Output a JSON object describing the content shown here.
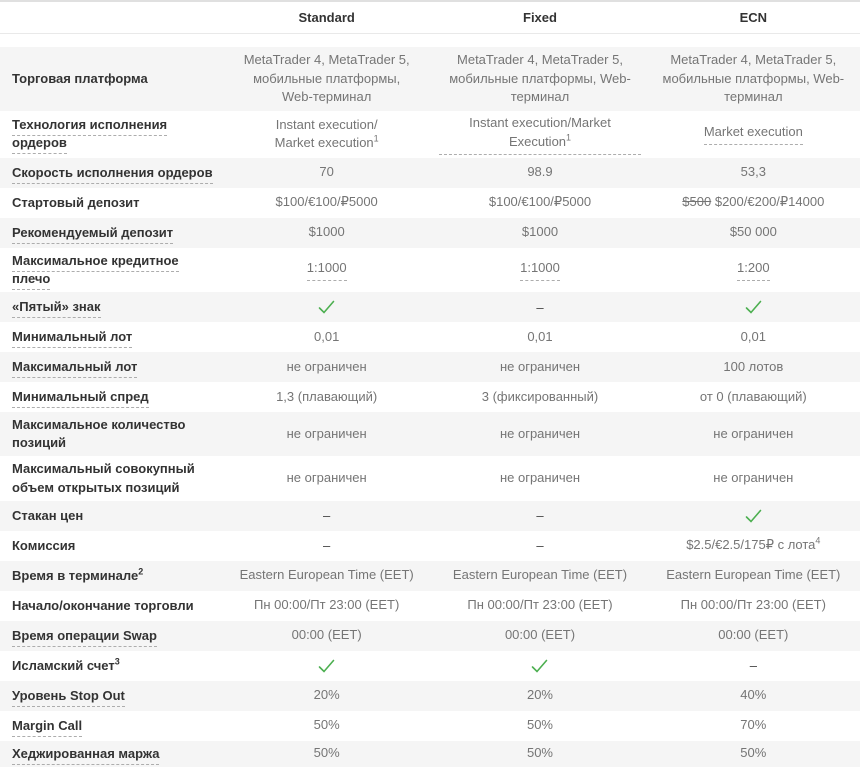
{
  "table": {
    "columns": [
      {
        "key": "standard",
        "label": "Standard"
      },
      {
        "key": "fixed",
        "label": "Fixed"
      },
      {
        "key": "ecn",
        "label": "ECN"
      }
    ],
    "glyphs": {
      "dash": "–",
      "check": "✓"
    },
    "colors": {
      "row_shaded_bg": "#f5f5f5",
      "label_text": "#333333",
      "value_text": "#757575",
      "check_green": "#4caf50",
      "dashed_underline": "#adadad",
      "top_border": "#e0e0e0",
      "header_separator": "#e9e9e9"
    },
    "rows": [
      {
        "label": "Торговая платформа",
        "label_dashed": false,
        "shaded": true,
        "cells": [
          {
            "type": "text",
            "text": "MetaTrader 4, MetaTrader 5, мобильные платформы, Web-терминал"
          },
          {
            "type": "text",
            "text": "MetaTrader 4, MetaTrader 5, мобильные платформы, Web-терминал"
          },
          {
            "type": "text",
            "text": "MetaTrader 4, MetaTrader 5, мобильные платформы, Web-терминал"
          }
        ]
      },
      {
        "label": "Технология исполнения ордеров",
        "label_dashed": true,
        "shaded": false,
        "cells": [
          {
            "type": "text",
            "text": "Instant execution/",
            "text2": "Market execution",
            "sup": "1"
          },
          {
            "type": "text",
            "text": "Instant execution/Market Execution",
            "sup": "1",
            "dashed": true
          },
          {
            "type": "text",
            "text": "Market execution",
            "dashed": true
          }
        ]
      },
      {
        "label": "Скорость исполнения ордеров",
        "label_dashed": true,
        "shaded": true,
        "cells": [
          {
            "type": "text",
            "text": "70"
          },
          {
            "type": "text",
            "text": "98.9"
          },
          {
            "type": "text",
            "text": "53,3"
          }
        ]
      },
      {
        "label": "Стартовый депозит",
        "label_dashed": false,
        "shaded": false,
        "cells": [
          {
            "type": "text",
            "text": "$100/€100/₽5000"
          },
          {
            "type": "text",
            "text": "$100/€100/₽5000"
          },
          {
            "type": "text",
            "strike": "$500",
            "text": "$200/€200/₽14000"
          }
        ]
      },
      {
        "label": "Рекомендуемый депозит",
        "label_dashed": true,
        "shaded": true,
        "cells": [
          {
            "type": "text",
            "text": "$1000"
          },
          {
            "type": "text",
            "text": "$1000"
          },
          {
            "type": "text",
            "text": "$50 000"
          }
        ]
      },
      {
        "label": "Максимальное кредитное плечо",
        "label_dashed": true,
        "shaded": false,
        "cells": [
          {
            "type": "text",
            "text": "1:1000",
            "dashed": true
          },
          {
            "type": "text",
            "text": "1:1000",
            "dashed": true
          },
          {
            "type": "text",
            "text": "1:200",
            "dashed": true
          }
        ]
      },
      {
        "label": "«Пятый» знак",
        "label_dashed": true,
        "shaded": true,
        "cells": [
          {
            "type": "check"
          },
          {
            "type": "dash"
          },
          {
            "type": "check"
          }
        ]
      },
      {
        "label": "Минимальный лот",
        "label_dashed": true,
        "shaded": false,
        "cells": [
          {
            "type": "text",
            "text": "0,01"
          },
          {
            "type": "text",
            "text": "0,01"
          },
          {
            "type": "text",
            "text": "0,01"
          }
        ]
      },
      {
        "label": "Максимальный лот",
        "label_dashed": true,
        "shaded": true,
        "cells": [
          {
            "type": "text",
            "text": "не ограничен"
          },
          {
            "type": "text",
            "text": "не ограничен"
          },
          {
            "type": "text",
            "text": "100 лотов"
          }
        ]
      },
      {
        "label": "Минимальный спред",
        "label_dashed": true,
        "shaded": false,
        "cells": [
          {
            "type": "text",
            "text": "1,3 (плавающий)"
          },
          {
            "type": "text",
            "text": "3 (фиксированный)"
          },
          {
            "type": "text",
            "text": "от 0 (плавающий)"
          }
        ]
      },
      {
        "label": "Максимальное количество позиций",
        "label_dashed": false,
        "shaded": true,
        "cells": [
          {
            "type": "text",
            "text": "не ограничен"
          },
          {
            "type": "text",
            "text": "не ограничен"
          },
          {
            "type": "text",
            "text": "не ограничен"
          }
        ]
      },
      {
        "label": "Максимальный совокупный объем открытых позиций",
        "label_dashed": false,
        "shaded": false,
        "cells": [
          {
            "type": "text",
            "text": "не ограничен"
          },
          {
            "type": "text",
            "text": "не ограничен"
          },
          {
            "type": "text",
            "text": "не ограничен"
          }
        ]
      },
      {
        "label": "Стакан цен",
        "label_dashed": false,
        "shaded": true,
        "cells": [
          {
            "type": "dash"
          },
          {
            "type": "dash"
          },
          {
            "type": "check"
          }
        ]
      },
      {
        "label": "Комиссия",
        "label_dashed": false,
        "shaded": false,
        "cells": [
          {
            "type": "dash"
          },
          {
            "type": "dash"
          },
          {
            "type": "text",
            "text": "$2.5/€2.5/175₽ с лота",
            "sup": "4"
          }
        ]
      },
      {
        "label": "Время в терминале",
        "label_sup": "2",
        "label_dashed": false,
        "shaded": true,
        "cells": [
          {
            "type": "text",
            "text": "Eastern European Time (EET)"
          },
          {
            "type": "text",
            "text": "Eastern European Time (EET)"
          },
          {
            "type": "text",
            "text": "Eastern European Time (EET)"
          }
        ]
      },
      {
        "label": "Начало/окончание торговли",
        "label_dashed": false,
        "shaded": false,
        "cells": [
          {
            "type": "text",
            "text": "Пн 00:00/Пт 23:00 (EET)"
          },
          {
            "type": "text",
            "text": "Пн 00:00/Пт 23:00 (EET)"
          },
          {
            "type": "text",
            "text": "Пн 00:00/Пт 23:00 (EET)"
          }
        ]
      },
      {
        "label": "Время операции Swap",
        "label_dashed": true,
        "shaded": true,
        "cells": [
          {
            "type": "text",
            "text": "00:00 (EET)"
          },
          {
            "type": "text",
            "text": "00:00 (EET)"
          },
          {
            "type": "text",
            "text": "00:00 (EET)"
          }
        ]
      },
      {
        "label": "Исламский счет",
        "label_sup": "3",
        "label_dashed": false,
        "shaded": false,
        "cells": [
          {
            "type": "check"
          },
          {
            "type": "check"
          },
          {
            "type": "dash"
          }
        ]
      },
      {
        "label": "Уровень Stop Out",
        "label_dashed": true,
        "shaded": true,
        "cells": [
          {
            "type": "text",
            "text": "20%"
          },
          {
            "type": "text",
            "text": "20%"
          },
          {
            "type": "text",
            "text": "40%"
          }
        ]
      },
      {
        "label": "Margin Call",
        "label_dashed": true,
        "shaded": false,
        "cells": [
          {
            "type": "text",
            "text": "50%"
          },
          {
            "type": "text",
            "text": "50%"
          },
          {
            "type": "text",
            "text": "70%"
          }
        ]
      },
      {
        "label": "Хеджированная маржа",
        "label_dashed": true,
        "shaded": true,
        "cells": [
          {
            "type": "text",
            "text": "50%"
          },
          {
            "type": "text",
            "text": "50%"
          },
          {
            "type": "text",
            "text": "50%"
          }
        ]
      }
    ]
  }
}
